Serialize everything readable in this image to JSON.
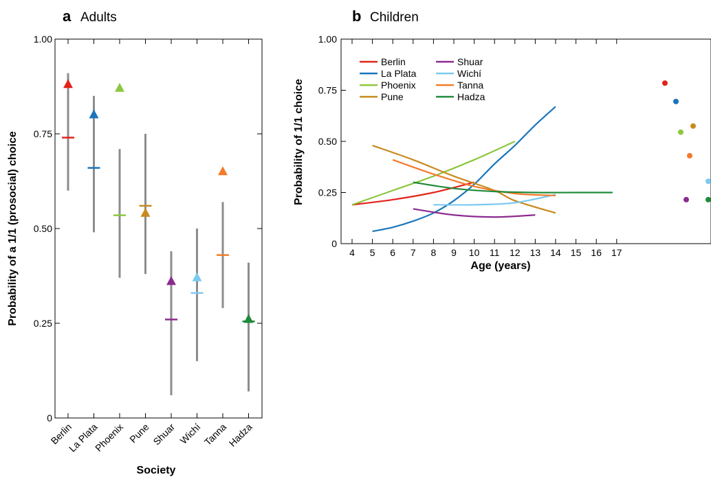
{
  "panels": {
    "a": {
      "letter": "a",
      "title": "Adults"
    },
    "b": {
      "letter": "b",
      "title": "Children"
    }
  },
  "colors": {
    "Berlin": "#e2231a",
    "La Plata": "#1a75bb",
    "Phoenix": "#8dc63f",
    "Pune": "#c8891e",
    "Shuar": "#8b2a8f",
    "Wichí": "#7ccaf0",
    "Tanna": "#f37b2b",
    "Hadza": "#1f8a3a",
    "ci": "#8c8c8c"
  },
  "chart_data": [
    {
      "type": "scatter",
      "panel": "a",
      "xlabel": "Society",
      "ylabel": "Probability of a 1/1 (prosocial) choice",
      "ylim": [
        0,
        1
      ],
      "yticks": [
        "0",
        "0.25",
        "0.50",
        "0.75",
        "1.00"
      ],
      "categories": [
        "Berlin",
        "La Plata",
        "Phoenix",
        "Pune",
        "Shuar",
        "Wichí",
        "Tanna",
        "Hadza"
      ],
      "series": [
        {
          "marker": "triangle",
          "values": [
            0.88,
            0.8,
            0.87,
            0.54,
            0.36,
            0.37,
            0.65,
            0.26
          ]
        },
        {
          "marker": "dash",
          "values": [
            0.74,
            0.66,
            0.535,
            0.56,
            0.26,
            0.33,
            0.43,
            0.255
          ]
        }
      ],
      "ci": [
        [
          0.6,
          0.91
        ],
        [
          0.49,
          0.85
        ],
        [
          0.37,
          0.71
        ],
        [
          0.38,
          0.75
        ],
        [
          0.06,
          0.44
        ],
        [
          0.15,
          0.5
        ],
        [
          0.29,
          0.57
        ],
        [
          0.07,
          0.41
        ]
      ],
      "grid": false
    },
    {
      "type": "line",
      "panel": "b",
      "xlabel": "Age (years)",
      "ylabel": "Probability of 1/1 choice",
      "xlim": [
        3.5,
        17.5
      ],
      "ylim": [
        0,
        1
      ],
      "xticks": [
        "4",
        "5",
        "6",
        "7",
        "8",
        "9",
        "10",
        "11",
        "12",
        "13",
        "14",
        "15",
        "16",
        "17"
      ],
      "yticks": [
        "0",
        "0.25",
        "0.50",
        "0.75",
        "1.00"
      ],
      "legend": "top-left",
      "legend_columns": [
        [
          "Berlin",
          "La Plata",
          "Phoenix",
          "Pune"
        ],
        [
          "Shuar",
          "Wichí",
          "Tanna",
          "Hadza"
        ]
      ],
      "series": [
        {
          "name": "Berlin",
          "x": [
            4,
            6,
            8,
            10
          ],
          "y": [
            0.19,
            0.215,
            0.25,
            0.3
          ]
        },
        {
          "name": "La Plata",
          "x": [
            5,
            6,
            7,
            8,
            9,
            10,
            11,
            12,
            13,
            14
          ],
          "y": [
            0.06,
            0.08,
            0.11,
            0.15,
            0.21,
            0.29,
            0.39,
            0.48,
            0.58,
            0.67
          ]
        },
        {
          "name": "Phoenix",
          "x": [
            4,
            6,
            8,
            10,
            12
          ],
          "y": [
            0.19,
            0.26,
            0.33,
            0.41,
            0.5
          ]
        },
        {
          "name": "Pune",
          "x": [
            5,
            7,
            9,
            11,
            12,
            14
          ],
          "y": [
            0.48,
            0.41,
            0.33,
            0.26,
            0.21,
            0.15
          ]
        },
        {
          "name": "Shuar",
          "x": [
            7,
            9,
            11,
            13
          ],
          "y": [
            0.17,
            0.14,
            0.13,
            0.14
          ]
        },
        {
          "name": "Wichí",
          "x": [
            8,
            10,
            12,
            14
          ],
          "y": [
            0.19,
            0.19,
            0.2,
            0.24
          ]
        },
        {
          "name": "Tanna",
          "x": [
            6,
            8,
            10,
            12,
            14
          ],
          "y": [
            0.41,
            0.34,
            0.28,
            0.245,
            0.235
          ]
        },
        {
          "name": "Hadza",
          "x": [
            7,
            9,
            11,
            13,
            15,
            16.8
          ],
          "y": [
            0.3,
            0.27,
            0.255,
            0.25,
            0.25,
            0.25
          ]
        }
      ],
      "side_dots": [
        {
          "name": "Berlin",
          "y": 0.785
        },
        {
          "name": "La Plata",
          "y": 0.695
        },
        {
          "name": "Phoenix",
          "y": 0.545
        },
        {
          "name": "Pune",
          "y": 0.575
        },
        {
          "name": "Tanna",
          "y": 0.43
        },
        {
          "name": "Wichí",
          "y": 0.305
        },
        {
          "name": "Shuar",
          "y": 0.215
        },
        {
          "name": "Hadza",
          "y": 0.215
        }
      ],
      "grid": false
    }
  ]
}
